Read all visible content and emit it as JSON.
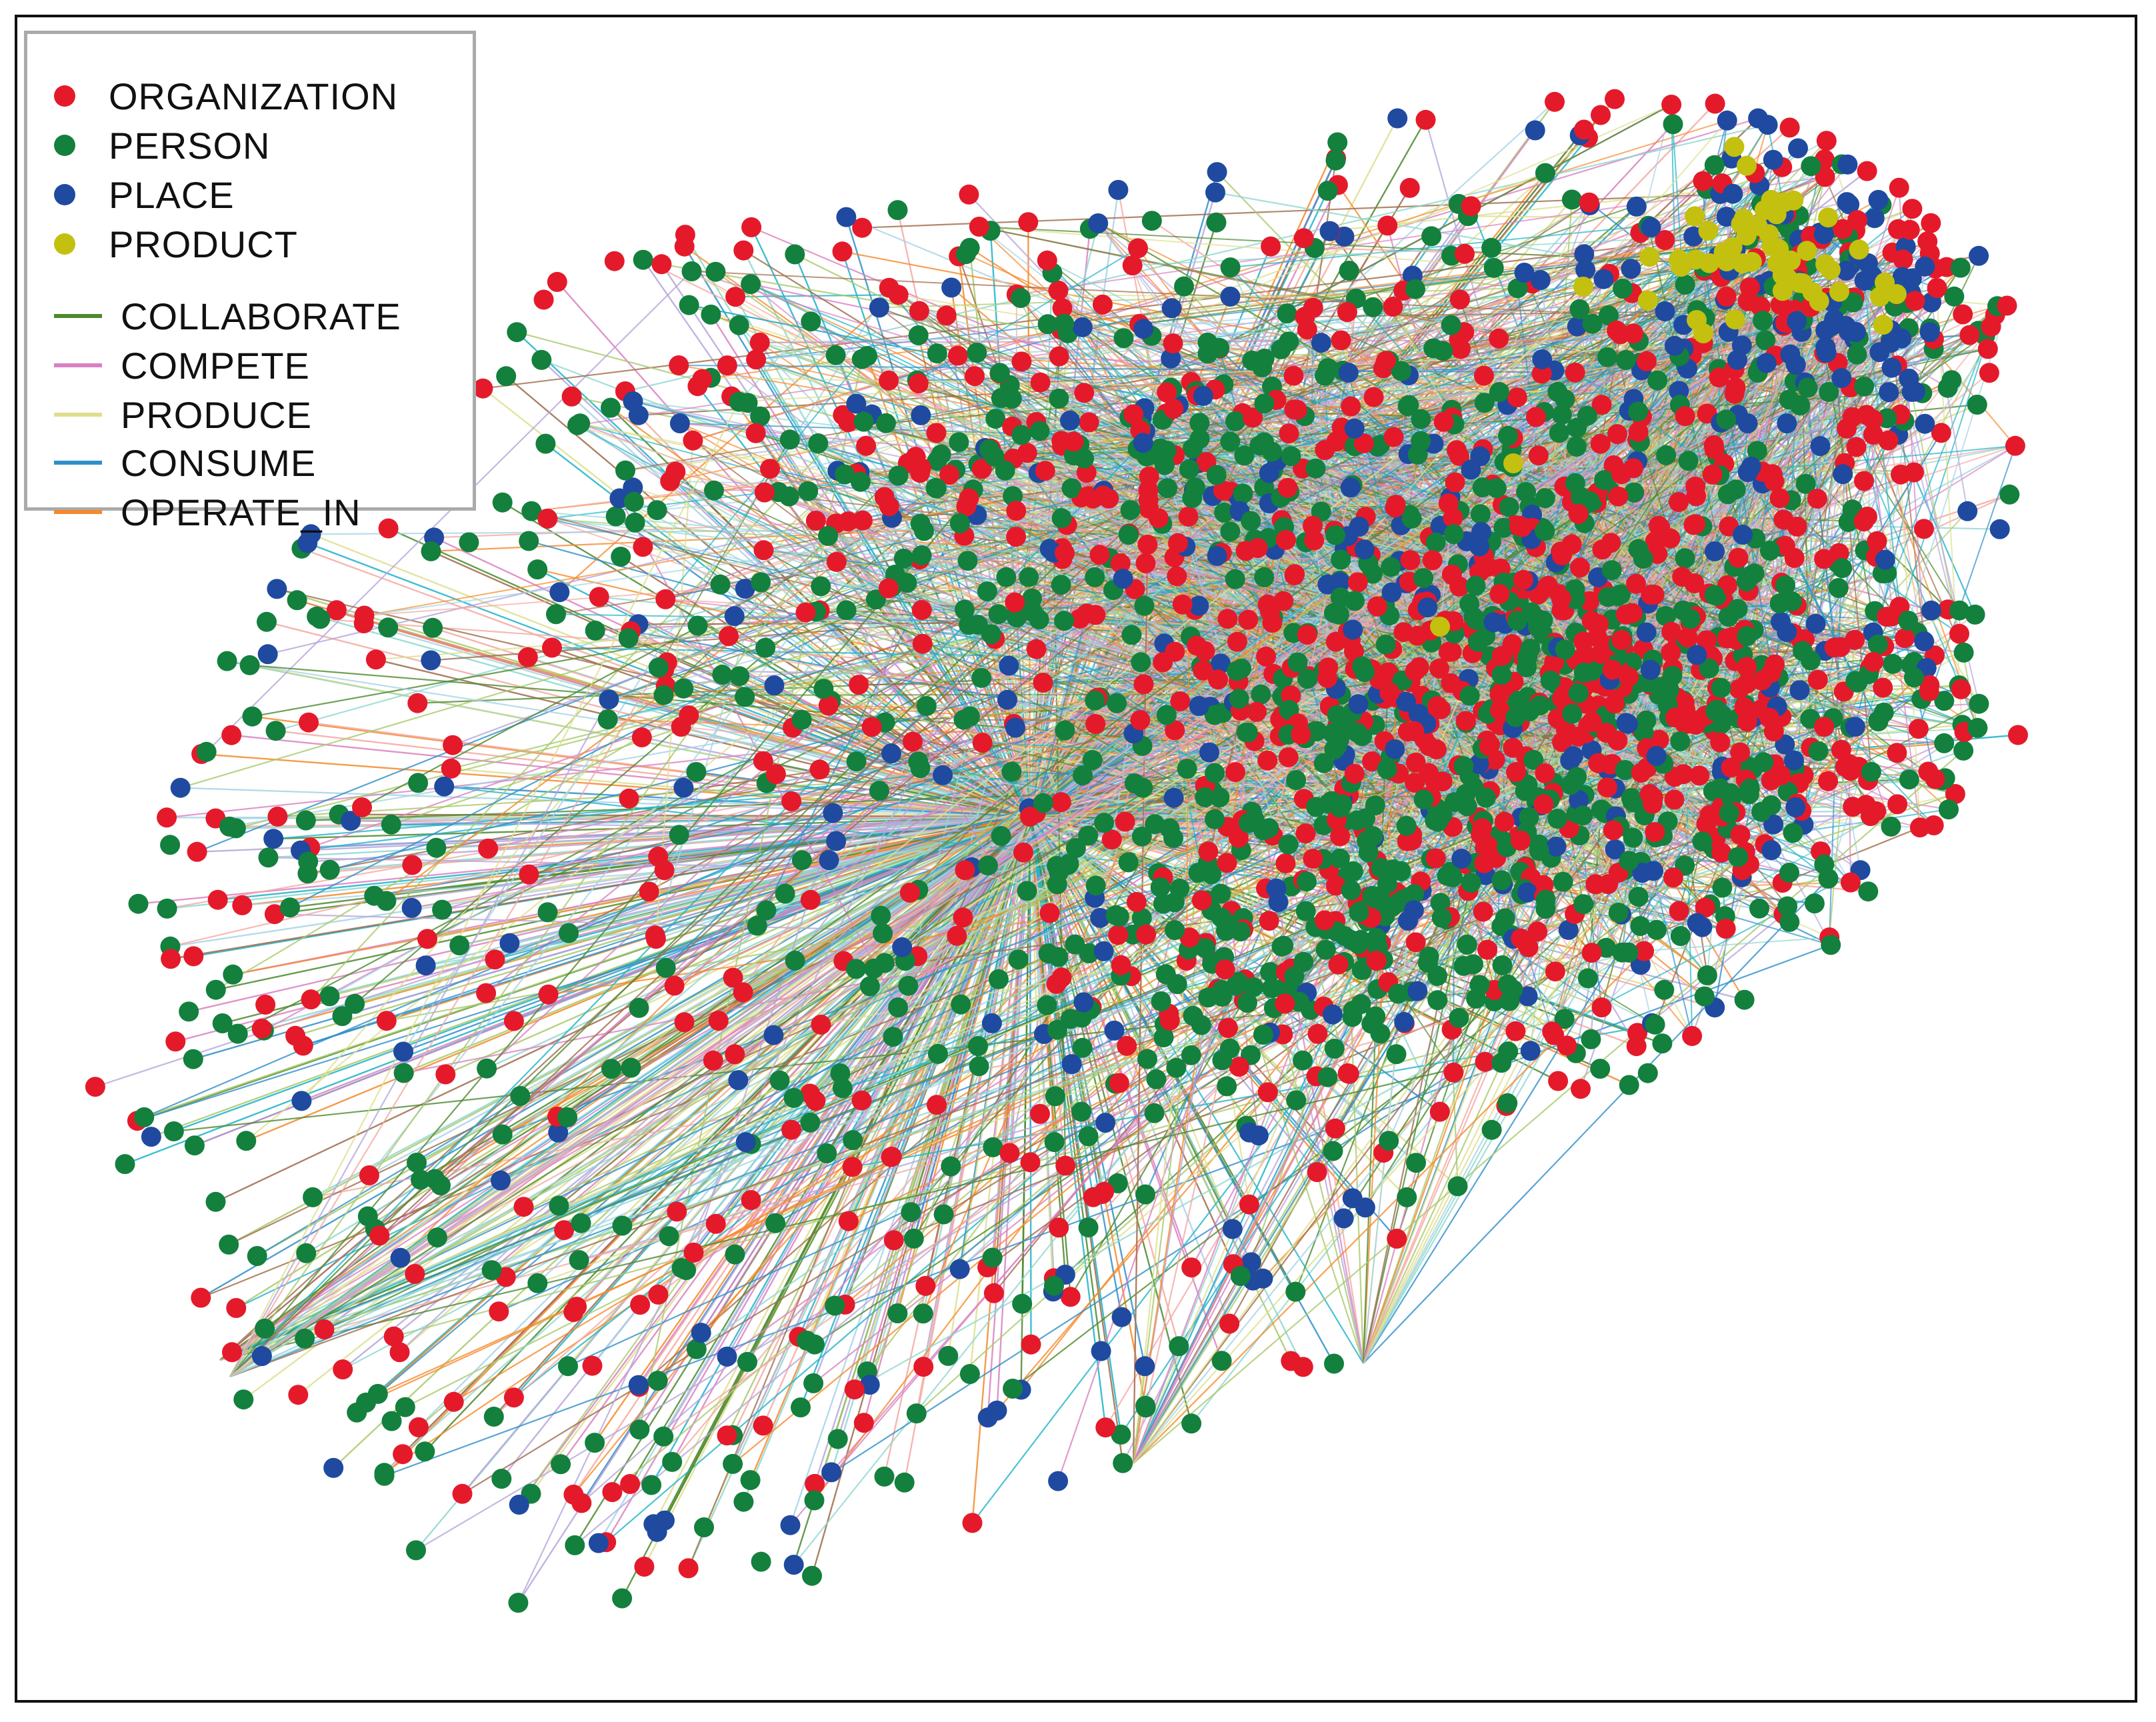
{
  "legend": {
    "node_types": [
      {
        "label": "ORGANIZATION",
        "color": "#e41a2b"
      },
      {
        "label": "PERSON",
        "color": "#13803d"
      },
      {
        "label": "PLACE",
        "color": "#1f4aa0"
      },
      {
        "label": "PRODUCT",
        "color": "#c3c00f"
      }
    ],
    "edge_types": [
      {
        "label": "COLLABORATE",
        "color": "#4c8a2e"
      },
      {
        "label": "COMPETE",
        "color": "#d982c2"
      },
      {
        "label": "PRODUCE",
        "color": "#dede8e"
      },
      {
        "label": "CONSUME",
        "color": "#2f8fc9"
      },
      {
        "label": "OPERATE_IN",
        "color": "#f58a2a"
      }
    ]
  },
  "graph": {
    "layout": "radial hub on the left with dense cluster on the right",
    "hub_node_type": "ORGANIZATION",
    "extra_edge_colors": [
      "#a8d3e6",
      "#f4a9a2",
      "#8fd7d0",
      "#9e6b4a",
      "#b7a6d9",
      "#1fb3c9",
      "#a9c96b"
    ]
  }
}
